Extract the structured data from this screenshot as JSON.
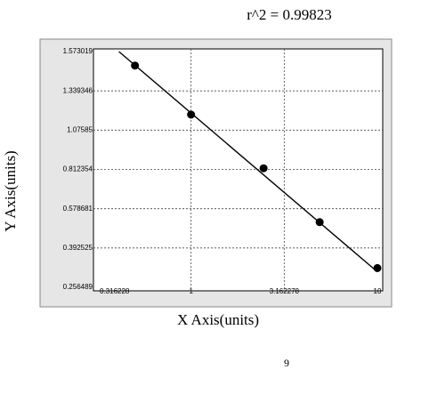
{
  "chart_data": {
    "type": "scatter",
    "annotation": "r^2  =  0.99823",
    "x_label": "X Axis(units)",
    "y_label": "Y Axis(units)",
    "x_scale": "log",
    "xlim": [
      0.316228,
      10
    ],
    "xticks": [
      0.316228,
      1,
      3.162278,
      10
    ],
    "ylim": [
      0.256489,
      1.573019
    ],
    "yticks": [
      0.256489,
      0.392525,
      0.578681,
      0.812354,
      1.07585,
      1.339346,
      1.573019
    ],
    "grid": true,
    "series": [
      {
        "type": "scatter",
        "color": "#000000",
        "x": [
          0.5,
          1,
          2.45,
          4.9,
          10
        ],
        "values": [
          1.49,
          1.18,
          0.82,
          0.515,
          0.323
        ]
      },
      {
        "type": "line",
        "color": "#000000",
        "x": [
          0.41,
          10
        ],
        "values": [
          1.573019,
          0.31
        ]
      }
    ]
  },
  "page_number": "9"
}
